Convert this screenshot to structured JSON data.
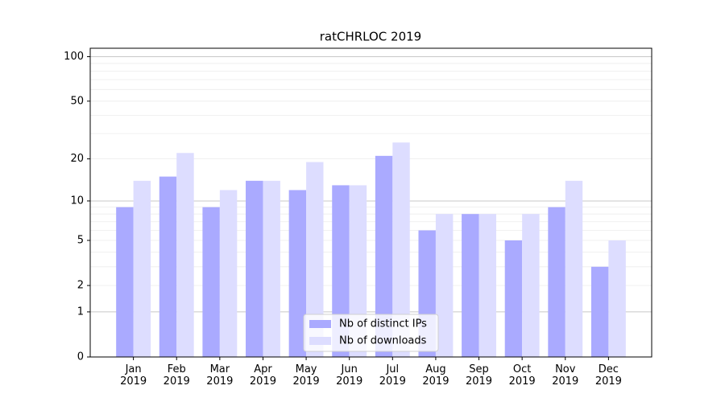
{
  "chart_data": {
    "type": "bar",
    "title": "ratCHRLOC 2019",
    "categories": [
      "Jan\n2019",
      "Feb\n2019",
      "Mar\n2019",
      "Apr\n2019",
      "May\n2019",
      "Jun\n2019",
      "Jul\n2019",
      "Aug\n2019",
      "Sep\n2019",
      "Oct\n2019",
      "Nov\n2019",
      "Dec\n2019"
    ],
    "series": [
      {
        "name": "Nb of distinct IPs",
        "color": "#aaaaff",
        "values": [
          9,
          15,
          9,
          14,
          12,
          13,
          21,
          6,
          8,
          5,
          9,
          3
        ]
      },
      {
        "name": "Nb of downloads",
        "color": "#ddddff",
        "values": [
          14,
          22,
          12,
          14,
          19,
          13,
          26,
          8,
          8,
          8,
          14,
          5
        ]
      }
    ],
    "yscale": "log1p",
    "ylim": [
      0,
      114
    ],
    "yticks": [
      0,
      1,
      2,
      5,
      10,
      20,
      50,
      100
    ],
    "ygrid_major": [
      1,
      10,
      100
    ],
    "ygrid_minor": [
      2,
      3,
      4,
      5,
      6,
      7,
      8,
      9,
      20,
      30,
      40,
      50,
      60,
      70,
      80,
      90
    ],
    "legend": "lower center"
  }
}
